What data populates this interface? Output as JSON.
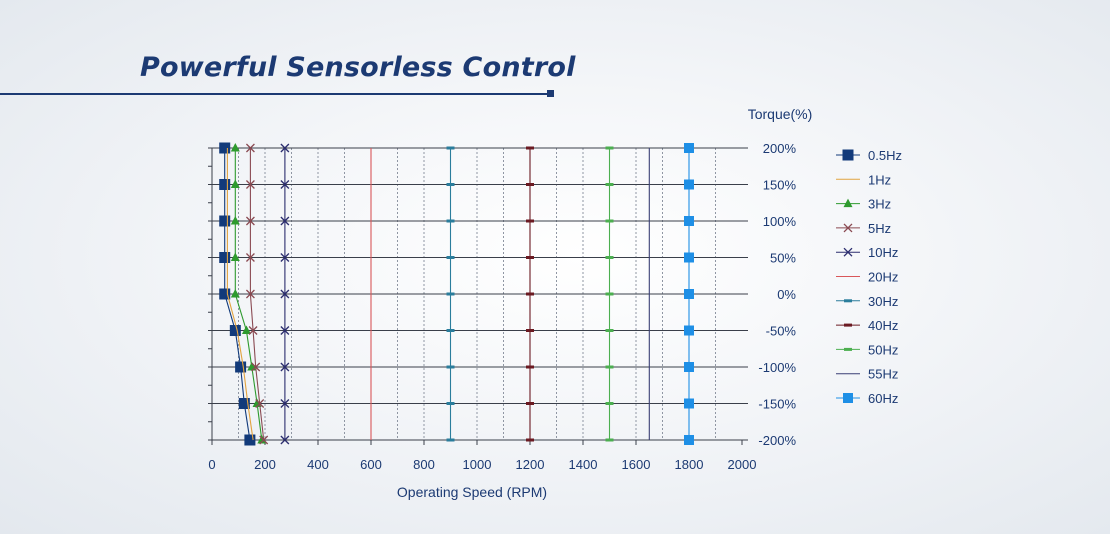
{
  "page": {
    "heading": "Powerful Sensorless Control"
  },
  "chart_data": {
    "type": "line",
    "xlabel": "Operating Speed (RPM)",
    "ylabel": "Torque(%)",
    "xlim": [
      0,
      2000
    ],
    "ylim": [
      -200,
      200
    ],
    "x_ticks": [
      0,
      200,
      400,
      600,
      800,
      1000,
      1200,
      1400,
      1600,
      1800,
      2000
    ],
    "x_tick_labels": [
      "0",
      "200",
      "400",
      "600",
      "800",
      "1000",
      "1200",
      "1400",
      "1600",
      "1800",
      "2000"
    ],
    "y_ticks": [
      200,
      150,
      100,
      50,
      0,
      -50,
      -100,
      -150,
      -200
    ],
    "y_tick_labels": [
      "200%",
      "150%",
      "100%",
      "50%",
      "0%",
      "-50%",
      "-100%",
      "-150%",
      "-200%"
    ],
    "y_axis_side": "right",
    "grid": true,
    "legend_position": "right",
    "series": [
      {
        "name": "0.5Hz",
        "color": "#123a7a",
        "marker": "square-small",
        "points": [
          [
            48,
            200
          ],
          [
            48,
            150
          ],
          [
            48,
            100
          ],
          [
            48,
            50
          ],
          [
            48,
            0
          ],
          [
            88,
            -50
          ],
          [
            108,
            -100
          ],
          [
            122,
            -150
          ],
          [
            143,
            -200
          ]
        ]
      },
      {
        "name": "1Hz",
        "color": "#e2a340",
        "marker": "none",
        "points": [
          [
            58,
            200
          ],
          [
            58,
            150
          ],
          [
            58,
            100
          ],
          [
            58,
            50
          ],
          [
            58,
            0
          ],
          [
            95,
            -50
          ],
          [
            118,
            -100
          ],
          [
            135,
            -150
          ],
          [
            155,
            -200
          ]
        ]
      },
      {
        "name": "3Hz",
        "color": "#2e9a2e",
        "marker": "triangle",
        "points": [
          [
            88,
            200
          ],
          [
            88,
            150
          ],
          [
            88,
            100
          ],
          [
            88,
            50
          ],
          [
            88,
            0
          ],
          [
            130,
            -50
          ],
          [
            150,
            -100
          ],
          [
            170,
            -150
          ],
          [
            188,
            -200
          ]
        ]
      },
      {
        "name": "5Hz",
        "color": "#8a4a52",
        "marker": "x",
        "points": [
          [
            145,
            200
          ],
          [
            145,
            150
          ],
          [
            145,
            100
          ],
          [
            145,
            50
          ],
          [
            145,
            0
          ],
          [
            155,
            -50
          ],
          [
            165,
            -100
          ],
          [
            180,
            -150
          ],
          [
            195,
            -200
          ]
        ]
      },
      {
        "name": "10Hz",
        "color": "#2b2d6e",
        "marker": "x",
        "points": [
          [
            275,
            200
          ],
          [
            275,
            150
          ],
          [
            275,
            100
          ],
          [
            275,
            50
          ],
          [
            275,
            0
          ],
          [
            275,
            -50
          ],
          [
            275,
            -100
          ],
          [
            275,
            -150
          ],
          [
            275,
            -200
          ]
        ]
      },
      {
        "name": "20Hz",
        "color": "#d9575a",
        "marker": "none",
        "points": [
          [
            600,
            200
          ],
          [
            600,
            150
          ],
          [
            600,
            100
          ],
          [
            600,
            50
          ],
          [
            600,
            0
          ],
          [
            600,
            -50
          ],
          [
            600,
            -100
          ],
          [
            600,
            -150
          ],
          [
            600,
            -200
          ]
        ]
      },
      {
        "name": "30Hz",
        "color": "#2a7d9c",
        "marker": "bar",
        "points": [
          [
            900,
            200
          ],
          [
            900,
            150
          ],
          [
            900,
            100
          ],
          [
            900,
            50
          ],
          [
            900,
            0
          ],
          [
            900,
            -50
          ],
          [
            900,
            -100
          ],
          [
            900,
            -150
          ],
          [
            900,
            -200
          ]
        ]
      },
      {
        "name": "40Hz",
        "color": "#6b1a22",
        "marker": "bar",
        "points": [
          [
            1200,
            200
          ],
          [
            1200,
            150
          ],
          [
            1200,
            100
          ],
          [
            1200,
            50
          ],
          [
            1200,
            0
          ],
          [
            1200,
            -50
          ],
          [
            1200,
            -100
          ],
          [
            1200,
            -150
          ],
          [
            1200,
            -200
          ]
        ]
      },
      {
        "name": "50Hz",
        "color": "#4caf50",
        "marker": "bar",
        "points": [
          [
            1500,
            200
          ],
          [
            1500,
            150
          ],
          [
            1500,
            100
          ],
          [
            1500,
            50
          ],
          [
            1500,
            0
          ],
          [
            1500,
            -50
          ],
          [
            1500,
            -100
          ],
          [
            1500,
            -150
          ],
          [
            1500,
            -200
          ]
        ]
      },
      {
        "name": "55Hz",
        "color": "#3a3f75",
        "marker": "none",
        "points": [
          [
            1650,
            200
          ],
          [
            1650,
            150
          ],
          [
            1650,
            100
          ],
          [
            1650,
            50
          ],
          [
            1650,
            0
          ],
          [
            1650,
            -50
          ],
          [
            1650,
            -100
          ],
          [
            1650,
            -150
          ],
          [
            1650,
            -200
          ]
        ]
      },
      {
        "name": "60Hz",
        "color": "#1e8fe6",
        "marker": "square",
        "points": [
          [
            1800,
            200
          ],
          [
            1800,
            150
          ],
          [
            1800,
            100
          ],
          [
            1800,
            50
          ],
          [
            1800,
            0
          ],
          [
            1800,
            -50
          ],
          [
            1800,
            -100
          ],
          [
            1800,
            -150
          ],
          [
            1800,
            -200
          ]
        ]
      }
    ]
  }
}
